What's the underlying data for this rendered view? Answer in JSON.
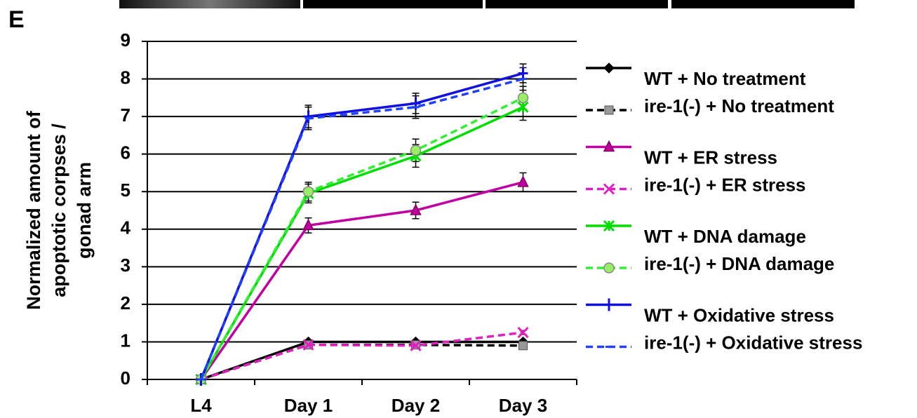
{
  "panel_label": "E",
  "chart_data": {
    "type": "line",
    "y_label": [
      "Normalized amount of",
      "apoptotic corpses /",
      "gonad arm"
    ],
    "categories": [
      "L4",
      "Day 1",
      "Day 2",
      "Day 3"
    ],
    "ylim": [
      0,
      9
    ],
    "yticks": [
      0,
      1,
      2,
      3,
      4,
      5,
      6,
      7,
      8,
      9
    ],
    "grid": true,
    "series": [
      {
        "name": "WT + No treatment",
        "color": "#000000",
        "marker_color": "#000000",
        "marker": "diamond",
        "dashed": false,
        "values": [
          0,
          1,
          1,
          1
        ],
        "errors": [
          0,
          0.05,
          0.05,
          0.05
        ]
      },
      {
        "name": "ire-1(-) + No treatment",
        "color": "#000000",
        "marker_color": "#999999",
        "marker": "square",
        "dashed": true,
        "values": [
          0,
          0.92,
          0.92,
          0.9
        ],
        "errors": [
          0,
          0.05,
          0.05,
          0.05
        ]
      },
      {
        "name": "WT + ER stress",
        "color": "#c000a0",
        "marker_color": "#c000a0",
        "marker": "triangle",
        "dashed": false,
        "values": [
          0,
          4.1,
          4.5,
          5.25
        ],
        "errors": [
          0,
          0.2,
          0.22,
          0.25
        ]
      },
      {
        "name": "ire-1(-) + ER stress",
        "color": "#e020c0",
        "marker_color": "#e020c0",
        "marker": "x",
        "dashed": true,
        "values": [
          0,
          0.92,
          0.9,
          1.25
        ],
        "errors": [
          0,
          0.05,
          0.05,
          0.05
        ]
      },
      {
        "name": "WT + DNA damage",
        "color": "#00dd00",
        "marker_color": "#00dd00",
        "marker": "asterisk",
        "dashed": false,
        "values": [
          0,
          4.95,
          5.95,
          7.25
        ],
        "errors": [
          0,
          0.25,
          0.3,
          0.35
        ]
      },
      {
        "name": "ire-1(-) + DNA damage",
        "color": "#33ee33",
        "marker_color": "#99ee66",
        "marker": "circle",
        "dashed": true,
        "values": [
          0,
          5.0,
          6.1,
          7.5
        ],
        "errors": [
          0,
          0.25,
          0.3,
          0.3
        ]
      },
      {
        "name": "WT + Oxidative stress",
        "color": "#1010e0",
        "marker_color": "#1010e0",
        "marker": "plus",
        "dashed": false,
        "values": [
          0,
          7.0,
          7.35,
          8.15
        ],
        "errors": [
          0,
          0.3,
          0.27,
          0.25
        ]
      },
      {
        "name": "ire-1(-) + Oxidative stress",
        "color": "#2040ff",
        "marker_color": "#2040ff",
        "marker": "dash",
        "dashed": true,
        "values": [
          0,
          6.95,
          7.25,
          8.0
        ],
        "errors": [
          0,
          0.3,
          0.3,
          0.3
        ]
      }
    ]
  }
}
